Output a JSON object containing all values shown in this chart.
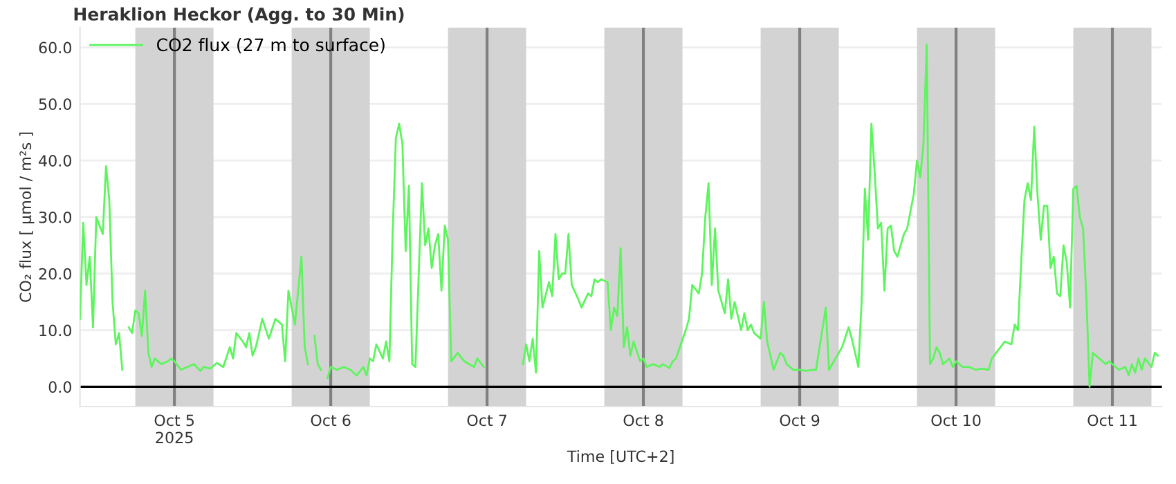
{
  "chart_data": {
    "type": "line",
    "title": "Heraklion Heckor (Agg. to 30 Min)",
    "xlabel": "Time [UTC+2]",
    "ylabel": "CO₂ flux [ µmol / m²s ]",
    "xlim": [
      "2025-10-04T09:30",
      "2025-10-11T07:36"
    ],
    "ylim": [
      -3.5,
      63.5
    ],
    "xticks": [
      {
        "value": "2025-10-05",
        "label": "Oct 5\n2025"
      },
      {
        "value": "2025-10-06",
        "label": "Oct 6"
      },
      {
        "value": "2025-10-07",
        "label": "Oct 7"
      },
      {
        "value": "2025-10-08",
        "label": "Oct 8"
      },
      {
        "value": "2025-10-09",
        "label": "Oct 9"
      },
      {
        "value": "2025-10-10",
        "label": "Oct 10"
      },
      {
        "value": "2025-10-11",
        "label": "Oct 11"
      }
    ],
    "yticks": [
      {
        "value": 0,
        "label": "0.0"
      },
      {
        "value": 10,
        "label": "10.0"
      },
      {
        "value": 20,
        "label": "20.0"
      },
      {
        "value": 30,
        "label": "30.0"
      },
      {
        "value": 40,
        "label": "40.0"
      },
      {
        "value": 50,
        "label": "50.0"
      },
      {
        "value": 60,
        "label": "60.0"
      }
    ],
    "grid": "y",
    "legend": "top left",
    "line_style": "solid",
    "marker": "none",
    "bands": [
      {
        "axis": "x",
        "from": "2025-10-04T18:00",
        "to": "2025-10-05T06:00",
        "color": "#d3d3d3"
      },
      {
        "axis": "x",
        "from": "2025-10-05T18:00",
        "to": "2025-10-06T06:00",
        "color": "#d3d3d3"
      },
      {
        "axis": "x",
        "from": "2025-10-06T18:00",
        "to": "2025-10-07T06:00",
        "color": "#d3d3d3"
      },
      {
        "axis": "x",
        "from": "2025-10-07T18:00",
        "to": "2025-10-08T06:00",
        "color": "#d3d3d3"
      },
      {
        "axis": "x",
        "from": "2025-10-08T18:00",
        "to": "2025-10-09T06:00",
        "color": "#d3d3d3"
      },
      {
        "axis": "x",
        "from": "2025-10-09T18:00",
        "to": "2025-10-10T06:00",
        "color": "#d3d3d3"
      },
      {
        "axis": "x",
        "from": "2025-10-10T18:00",
        "to": "2025-10-11T06:00",
        "color": "#d3d3d3"
      }
    ],
    "ref_lines": [
      {
        "axis": "x",
        "value": "2025-10-05",
        "color": "#808080"
      },
      {
        "axis": "x",
        "value": "2025-10-06",
        "color": "#808080"
      },
      {
        "axis": "x",
        "value": "2025-10-07",
        "color": "#808080"
      },
      {
        "axis": "x",
        "value": "2025-10-08",
        "color": "#808080"
      },
      {
        "axis": "x",
        "value": "2025-10-09",
        "color": "#808080"
      },
      {
        "axis": "x",
        "value": "2025-10-10",
        "color": "#808080"
      },
      {
        "axis": "x",
        "value": "2025-10-11",
        "color": "#808080"
      },
      {
        "axis": "y",
        "value": 0,
        "color": "#000000"
      }
    ],
    "series": [
      {
        "name": "CO2 flux (27 m to surface)",
        "color": "#5cf55c",
        "x": [
          "2025-10-04T09:30",
          "2025-10-04T10:00",
          "2025-10-04T10:30",
          "2025-10-04T11:00",
          "2025-10-04T11:30",
          "2025-10-04T12:00",
          "2025-10-04T13:00",
          "2025-10-04T13:30",
          "2025-10-04T14:00",
          "2025-10-04T14:30",
          "2025-10-04T15:00",
          "2025-10-04T15:30",
          "2025-10-04T16:00",
          "2025-10-04T16:30",
          "2025-10-04T17:00",
          "2025-10-04T17:30",
          "2025-10-04T18:00",
          "2025-10-04T18:30",
          "2025-10-04T19:00",
          "2025-10-04T19:30",
          "2025-10-04T20:00",
          "2025-10-04T20:30",
          "2025-10-04T21:00",
          "2025-10-04T22:00",
          "2025-10-04T23:00",
          "2025-10-04T23:30",
          "2025-10-05T00:00",
          "2025-10-05T01:00",
          "2025-10-05T02:00",
          "2025-10-05T03:00",
          "2025-10-05T04:00",
          "2025-10-05T04:30",
          "2025-10-05T05:30",
          "2025-10-05T06:30",
          "2025-10-05T07:30",
          "2025-10-05T08:30",
          "2025-10-05T09:00",
          "2025-10-05T09:30",
          "2025-10-05T10:30",
          "2025-10-05T11:00",
          "2025-10-05T11:30",
          "2025-10-05T12:00",
          "2025-10-05T12:30",
          "2025-10-05T13:30",
          "2025-10-05T14:30",
          "2025-10-05T15:30",
          "2025-10-05T16:30",
          "2025-10-05T17:00",
          "2025-10-05T17:30",
          "2025-10-05T18:30",
          "2025-10-05T19:30",
          "2025-10-05T20:00",
          "2025-10-05T20:30",
          "2025-10-05T21:00",
          "2025-10-05T21:30",
          "2025-10-05T22:00",
          "2025-10-05T22:30",
          "2025-10-05T23:00",
          "2025-10-05T23:30",
          "2025-10-06T00:00",
          "2025-10-06T01:00",
          "2025-10-06T02:00",
          "2025-10-06T03:00",
          "2025-10-06T04:00",
          "2025-10-06T05:00",
          "2025-10-06T05:30",
          "2025-10-06T06:00",
          "2025-10-06T06:30",
          "2025-10-06T07:00",
          "2025-10-06T08:00",
          "2025-10-06T08:30",
          "2025-10-06T09:00",
          "2025-10-06T09:30",
          "2025-10-06T10:00",
          "2025-10-06T10:30",
          "2025-10-06T11:00",
          "2025-10-06T11:30",
          "2025-10-06T12:00",
          "2025-10-06T12:30",
          "2025-10-06T13:00",
          "2025-10-06T14:00",
          "2025-10-06T14:30",
          "2025-10-06T15:00",
          "2025-10-06T15:30",
          "2025-10-06T16:00",
          "2025-10-06T16:30",
          "2025-10-06T17:00",
          "2025-10-06T17:30",
          "2025-10-06T18:00",
          "2025-10-06T18:30",
          "2025-10-06T19:30",
          "2025-10-06T20:30",
          "2025-10-06T22:00",
          "2025-10-06T22:30",
          "2025-10-06T23:30",
          "2025-10-07T00:00",
          "2025-10-07T05:30",
          "2025-10-07T06:00",
          "2025-10-07T06:30",
          "2025-10-07T07:00",
          "2025-10-07T07:30",
          "2025-10-07T08:00",
          "2025-10-07T08:30",
          "2025-10-07T09:30",
          "2025-10-07T10:00",
          "2025-10-07T10:30",
          "2025-10-07T11:00",
          "2025-10-07T11:30",
          "2025-10-07T12:00",
          "2025-10-07T12:30",
          "2025-10-07T13:00",
          "2025-10-07T14:00",
          "2025-10-07T14:30",
          "2025-10-07T15:30",
          "2025-10-07T16:00",
          "2025-10-07T16:30",
          "2025-10-07T17:00",
          "2025-10-07T17:30",
          "2025-10-07T18:30",
          "2025-10-07T19:00",
          "2025-10-07T19:30",
          "2025-10-07T20:00",
          "2025-10-07T20:30",
          "2025-10-07T21:00",
          "2025-10-07T21:30",
          "2025-10-07T22:00",
          "2025-10-07T22:30",
          "2025-10-07T23:30",
          "2025-10-08T00:00",
          "2025-10-08T00:30",
          "2025-10-08T01:30",
          "2025-10-08T02:30",
          "2025-10-08T03:00",
          "2025-10-08T04:00",
          "2025-10-08T04:30",
          "2025-10-08T05:00",
          "2025-10-08T06:30",
          "2025-10-08T07:00",
          "2025-10-08T07:30",
          "2025-10-08T08:30",
          "2025-10-08T09:00",
          "2025-10-08T09:30",
          "2025-10-08T10:00",
          "2025-10-08T10:30",
          "2025-10-08T11:00",
          "2025-10-08T11:30",
          "2025-10-08T12:30",
          "2025-10-08T13:00",
          "2025-10-08T13:30",
          "2025-10-08T14:00",
          "2025-10-08T15:00",
          "2025-10-08T15:30",
          "2025-10-08T16:00",
          "2025-10-08T16:30",
          "2025-10-08T17:00",
          "2025-10-08T18:00",
          "2025-10-08T18:30",
          "2025-10-08T19:00",
          "2025-10-08T19:30",
          "2025-10-08T20:00",
          "2025-10-08T21:00",
          "2025-10-08T21:30",
          "2025-10-08T22:00",
          "2025-10-08T23:00",
          "2025-10-09T00:00",
          "2025-10-09T01:00",
          "2025-10-09T02:00",
          "2025-10-09T02:30",
          "2025-10-09T04:00",
          "2025-10-09T04:30",
          "2025-10-09T05:30",
          "2025-10-09T06:30",
          "2025-10-09T07:30",
          "2025-10-09T08:00",
          "2025-10-09T09:00",
          "2025-10-09T09:30",
          "2025-10-09T10:00",
          "2025-10-09T10:30",
          "2025-10-09T11:00",
          "2025-10-09T11:30",
          "2025-10-09T12:00",
          "2025-10-09T12:30",
          "2025-10-09T13:00",
          "2025-10-09T13:30",
          "2025-10-09T14:00",
          "2025-10-09T14:30",
          "2025-10-09T15:00",
          "2025-10-09T16:00",
          "2025-10-09T16:30",
          "2025-10-09T17:30",
          "2025-10-09T18:00",
          "2025-10-09T18:30",
          "2025-10-09T19:00",
          "2025-10-09T19:30",
          "2025-10-09T20:00",
          "2025-10-09T20:30",
          "2025-10-09T21:00",
          "2025-10-09T21:30",
          "2025-10-09T22:00",
          "2025-10-09T23:00",
          "2025-10-09T23:30",
          "2025-10-10T00:00",
          "2025-10-10T01:00",
          "2025-10-10T02:00",
          "2025-10-10T03:00",
          "2025-10-10T04:00",
          "2025-10-10T05:00",
          "2025-10-10T05:30",
          "2025-10-10T06:30",
          "2025-10-10T07:30",
          "2025-10-10T08:30",
          "2025-10-10T09:00",
          "2025-10-10T09:30",
          "2025-10-10T10:00",
          "2025-10-10T10:30",
          "2025-10-10T11:00",
          "2025-10-10T11:30",
          "2025-10-10T12:00",
          "2025-10-10T12:30",
          "2025-10-10T13:00",
          "2025-10-10T13:30",
          "2025-10-10T14:00",
          "2025-10-10T14:30",
          "2025-10-10T15:00",
          "2025-10-10T15:30",
          "2025-10-10T16:00",
          "2025-10-10T16:30",
          "2025-10-10T17:00",
          "2025-10-10T17:30",
          "2025-10-10T18:00",
          "2025-10-10T18:30",
          "2025-10-10T19:00",
          "2025-10-10T19:30",
          "2025-10-10T20:00",
          "2025-10-10T20:30",
          "2025-10-10T21:00",
          "2025-10-10T22:00",
          "2025-10-10T23:00",
          "2025-10-10T23:30",
          "2025-10-11T00:30",
          "2025-10-11T01:00",
          "2025-10-11T02:00",
          "2025-10-11T02:30",
          "2025-10-11T03:00",
          "2025-10-11T03:30",
          "2025-10-11T04:00",
          "2025-10-11T04:30",
          "2025-10-11T05:00",
          "2025-10-11T06:00",
          "2025-10-11T06:30",
          "2025-10-11T07:00"
        ],
        "values": [
          12,
          29,
          18,
          23,
          10.5,
          30,
          27,
          39,
          33,
          15,
          7.5,
          9.5,
          3,
          null,
          10.5,
          9.5,
          13.5,
          13,
          9,
          17,
          6,
          3.5,
          5,
          4,
          4.5,
          5,
          4.5,
          3,
          3.5,
          4,
          2.8,
          3.5,
          3.2,
          4.2,
          3.5,
          7,
          5,
          9.5,
          8,
          7,
          9.5,
          5.5,
          7,
          12,
          8.5,
          12,
          11,
          4.5,
          17,
          11,
          23,
          7,
          4,
          null,
          9,
          4,
          3,
          null,
          1.5,
          3.5,
          3,
          3.5,
          3,
          2,
          3.5,
          2,
          5,
          4.5,
          7.5,
          5,
          8,
          4.5,
          27,
          44,
          46.5,
          43,
          24,
          35.5,
          4,
          3.5,
          36,
          25,
          28,
          21,
          25,
          27,
          17,
          28.5,
          26,
          4.5,
          6,
          4.5,
          3.5,
          5,
          3.5,
          null,
          4,
          7.5,
          4.5,
          8.5,
          2.5,
          24,
          14,
          18.5,
          16,
          27,
          19,
          20,
          20,
          27,
          18,
          15.5,
          14,
          16.5,
          16,
          19,
          18.5,
          19,
          18.5,
          10,
          14,
          12.5,
          24.5,
          7,
          10.5,
          5.5,
          8,
          4.5,
          5,
          3.5,
          4,
          3.5,
          4,
          3.3,
          4.5,
          5,
          10,
          12,
          18,
          16.5,
          20,
          30,
          36,
          18,
          28,
          17,
          13,
          19,
          12,
          15,
          10,
          13,
          10,
          11,
          9.5,
          8.5,
          15,
          8,
          5.5,
          3,
          6,
          5.5,
          4,
          3,
          3,
          2.8,
          3,
          3,
          14,
          3,
          5,
          7,
          10.5,
          8.5,
          3.5,
          15,
          35,
          26,
          46.5,
          38,
          28,
          29,
          17,
          28,
          28.5,
          24,
          23,
          27,
          28,
          34,
          40,
          37,
          43,
          60.5,
          4,
          5,
          7,
          6,
          4,
          5,
          3.5,
          4.5,
          3.5,
          3.5,
          3,
          3.2,
          3,
          5,
          6.5,
          8,
          7.5,
          11,
          10,
          22,
          33,
          36,
          33,
          46,
          34,
          26,
          32,
          32,
          21,
          23,
          16.5,
          16,
          25,
          22,
          14,
          35,
          35.5,
          30,
          28,
          16,
          0,
          6,
          5,
          4,
          4.5,
          3.5,
          3,
          3.5,
          2,
          4,
          2.5,
          5,
          3,
          5,
          3.5,
          6,
          5.5
        ]
      }
    ]
  }
}
